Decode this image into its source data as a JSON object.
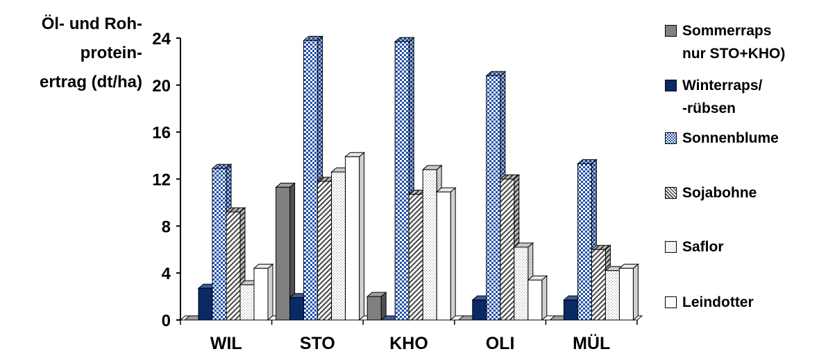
{
  "chart_data": {
    "type": "bar",
    "title": "",
    "ylabel_lines": [
      "Öl- und Roh-",
      "protein-",
      "ertrag (dt/ha)"
    ],
    "xlabel": "",
    "ylim": [
      0,
      24
    ],
    "yticks": [
      0,
      4,
      8,
      12,
      16,
      20,
      24
    ],
    "categories": [
      "WIL",
      "STO",
      "KHO",
      "OLI",
      "MÜL"
    ],
    "legend_position": "right",
    "grid": false,
    "series": [
      {
        "name": "Sommerraps nur STO+KHO)",
        "legend_lines": [
          "Sommerraps",
          "nur STO+KHO)"
        ],
        "pattern": "solid-gray",
        "color": "#808080",
        "values": [
          0,
          11.3,
          2.0,
          0,
          0
        ]
      },
      {
        "name": "Winterraps/ -rübsen",
        "legend_lines": [
          "Winterraps/",
          "-rübsen"
        ],
        "pattern": "solid-navy",
        "color": "#0a2a66",
        "values": [
          2.7,
          1.9,
          0,
          1.7,
          1.7
        ]
      },
      {
        "name": "Sonnenblume",
        "legend_lines": [
          "Sonnenblume"
        ],
        "pattern": "blue-checker",
        "color": "#1f4fa8",
        "values": [
          12.9,
          23.8,
          23.7,
          20.8,
          13.3
        ]
      },
      {
        "name": "Sojabohne",
        "legend_lines": [
          "Sojabohne"
        ],
        "pattern": "diagonal-hatch",
        "color": "#555555",
        "values": [
          9.2,
          11.8,
          10.7,
          12.0,
          6.0
        ]
      },
      {
        "name": "Saflor",
        "legend_lines": [
          "Saflor"
        ],
        "pattern": "light-dots",
        "color": "#cccccc",
        "values": [
          3.0,
          12.6,
          12.8,
          6.2,
          4.2
        ]
      },
      {
        "name": "Leindotter",
        "legend_lines": [
          "Leindotter"
        ],
        "pattern": "white",
        "color": "#ffffff",
        "values": [
          4.4,
          13.9,
          10.9,
          3.4,
          4.4
        ]
      }
    ]
  }
}
